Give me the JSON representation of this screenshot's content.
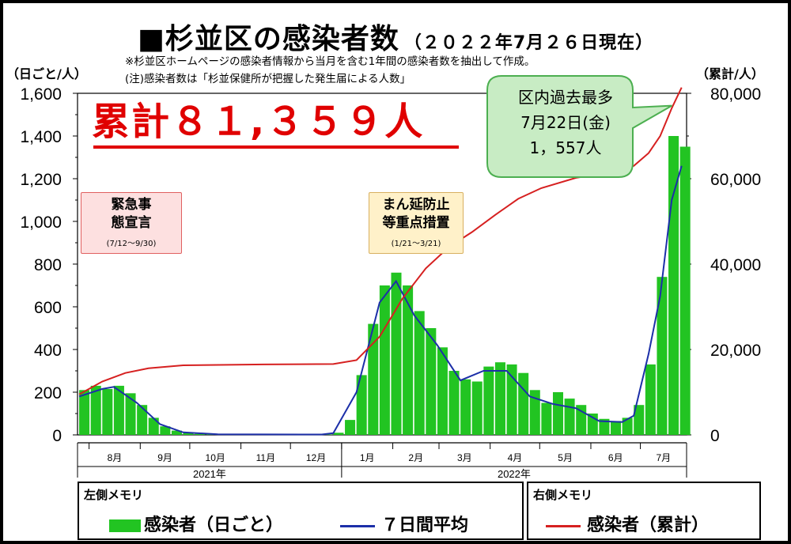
{
  "header": {
    "title": "■杉並区の感染者数",
    "date": "（２０２２年7月２６日現在）",
    "note1": "※杉並区ホームページの感染者情報から当月を含む1年間の感染者数を抽出して作成。",
    "note2": "(注)感染者数は「杉並保健所が把握した発生届による人数」"
  },
  "axis_units": {
    "left": "（日ごと/人）",
    "right": "（累計/人）"
  },
  "total_label": "累計８１,３５９人",
  "emergency_box": {
    "line1": "緊急事",
    "line2": "態宣言",
    "sub": "(7/12～9/30)"
  },
  "mambo_box": {
    "line1": "まん延防止",
    "line2": "等重点措置",
    "sub": "(1/21～3/21)"
  },
  "callout": {
    "line1": "区内過去最多",
    "line2": "7月22日(金)",
    "line3": "1，557人"
  },
  "legend": {
    "left_heading": "左側メモリ",
    "right_heading": "右側メモリ",
    "daily_label": "感染者（日ごと）",
    "avg_label": "７日間平均",
    "cumulative_label": "感染者（累計）"
  },
  "colors": {
    "bar": "#22c422",
    "avg_line": "#1c2fa8",
    "cumulative_line": "#d62020",
    "total_text": "#e00000",
    "callout_fill": "#c8ecc4",
    "callout_border": "#4caf50"
  },
  "chart_data": {
    "type": "bar",
    "months": [
      "8月",
      "9月",
      "10月",
      "11月",
      "12月",
      "1月",
      "2月",
      "3月",
      "4月",
      "5月",
      "6月",
      "7月"
    ],
    "years": [
      "2021年",
      "2022年"
    ],
    "left_axis": {
      "ylim": [
        0,
        1600
      ],
      "ticks": [
        "0",
        "200",
        "400",
        "600",
        "800",
        "1,000",
        "1,200",
        "1,400",
        "1,600"
      ]
    },
    "right_axis": {
      "ylim": [
        0,
        80000
      ],
      "ticks": [
        "0",
        "20,000",
        "40,000",
        "60,000",
        "80,000"
      ]
    },
    "daily_weekly_estimate": [
      {
        "date": "2021-07-26",
        "value": 210
      },
      {
        "date": "2021-08-02",
        "value": 230
      },
      {
        "date": "2021-08-09",
        "value": 215
      },
      {
        "date": "2021-08-16",
        "value": 230
      },
      {
        "date": "2021-08-23",
        "value": 195
      },
      {
        "date": "2021-08-30",
        "value": 140
      },
      {
        "date": "2021-09-06",
        "value": 80
      },
      {
        "date": "2021-09-13",
        "value": 40
      },
      {
        "date": "2021-09-20",
        "value": 20
      },
      {
        "date": "2021-09-27",
        "value": 10
      },
      {
        "date": "2021-10-04",
        "value": 5
      },
      {
        "date": "2021-10-11",
        "value": 3
      },
      {
        "date": "2021-10-18",
        "value": 2
      },
      {
        "date": "2021-10-25",
        "value": 2
      },
      {
        "date": "2021-11-01",
        "value": 1
      },
      {
        "date": "2021-11-08",
        "value": 1
      },
      {
        "date": "2021-11-15",
        "value": 1
      },
      {
        "date": "2021-11-22",
        "value": 1
      },
      {
        "date": "2021-11-29",
        "value": 1
      },
      {
        "date": "2021-12-06",
        "value": 1
      },
      {
        "date": "2021-12-13",
        "value": 1
      },
      {
        "date": "2021-12-20",
        "value": 2
      },
      {
        "date": "2021-12-27",
        "value": 10
      },
      {
        "date": "2022-01-03",
        "value": 70
      },
      {
        "date": "2022-01-10",
        "value": 280
      },
      {
        "date": "2022-01-17",
        "value": 520
      },
      {
        "date": "2022-01-24",
        "value": 700
      },
      {
        "date": "2022-01-31",
        "value": 760
      },
      {
        "date": "2022-02-07",
        "value": 700
      },
      {
        "date": "2022-02-14",
        "value": 580
      },
      {
        "date": "2022-02-21",
        "value": 500
      },
      {
        "date": "2022-02-28",
        "value": 410
      },
      {
        "date": "2022-03-07",
        "value": 300
      },
      {
        "date": "2022-03-14",
        "value": 260
      },
      {
        "date": "2022-03-21",
        "value": 250
      },
      {
        "date": "2022-03-28",
        "value": 320
      },
      {
        "date": "2022-04-04",
        "value": 340
      },
      {
        "date": "2022-04-11",
        "value": 330
      },
      {
        "date": "2022-04-18",
        "value": 290
      },
      {
        "date": "2022-04-25",
        "value": 210
      },
      {
        "date": "2022-05-02",
        "value": 150
      },
      {
        "date": "2022-05-09",
        "value": 200
      },
      {
        "date": "2022-05-16",
        "value": 170
      },
      {
        "date": "2022-05-23",
        "value": 140
      },
      {
        "date": "2022-05-30",
        "value": 100
      },
      {
        "date": "2022-06-06",
        "value": 75
      },
      {
        "date": "2022-06-13",
        "value": 65
      },
      {
        "date": "2022-06-20",
        "value": 80
      },
      {
        "date": "2022-06-27",
        "value": 140
      },
      {
        "date": "2022-07-04",
        "value": 330
      },
      {
        "date": "2022-07-11",
        "value": 740
      },
      {
        "date": "2022-07-18",
        "value": 1400
      },
      {
        "date": "2022-07-25",
        "value": 1350
      }
    ],
    "seven_day_average": [
      {
        "date": "2021-07-26",
        "value": 180
      },
      {
        "date": "2021-08-09",
        "value": 215
      },
      {
        "date": "2021-08-16",
        "value": 225
      },
      {
        "date": "2021-08-30",
        "value": 150
      },
      {
        "date": "2021-09-13",
        "value": 50
      },
      {
        "date": "2021-09-27",
        "value": 12
      },
      {
        "date": "2021-10-18",
        "value": 3
      },
      {
        "date": "2021-12-20",
        "value": 2
      },
      {
        "date": "2021-12-27",
        "value": 8
      },
      {
        "date": "2022-01-10",
        "value": 200
      },
      {
        "date": "2022-01-24",
        "value": 620
      },
      {
        "date": "2022-02-03",
        "value": 720
      },
      {
        "date": "2022-02-14",
        "value": 560
      },
      {
        "date": "2022-02-28",
        "value": 420
      },
      {
        "date": "2022-03-14",
        "value": 255
      },
      {
        "date": "2022-03-28",
        "value": 300
      },
      {
        "date": "2022-04-11",
        "value": 300
      },
      {
        "date": "2022-04-25",
        "value": 180
      },
      {
        "date": "2022-05-09",
        "value": 145
      },
      {
        "date": "2022-05-23",
        "value": 125
      },
      {
        "date": "2022-06-06",
        "value": 65
      },
      {
        "date": "2022-06-20",
        "value": 60
      },
      {
        "date": "2022-06-27",
        "value": 90
      },
      {
        "date": "2022-07-06",
        "value": 380
      },
      {
        "date": "2022-07-13",
        "value": 650
      },
      {
        "date": "2022-07-20",
        "value": 1100
      },
      {
        "date": "2022-07-26",
        "value": 1260
      }
    ],
    "cumulative": [
      {
        "date": "2021-07-26",
        "value": 9500
      },
      {
        "date": "2021-08-09",
        "value": 12500
      },
      {
        "date": "2021-08-23",
        "value": 14500
      },
      {
        "date": "2021-09-06",
        "value": 15600
      },
      {
        "date": "2021-09-27",
        "value": 16300
      },
      {
        "date": "2021-11-15",
        "value": 16500
      },
      {
        "date": "2021-12-27",
        "value": 16600
      },
      {
        "date": "2022-01-10",
        "value": 17500
      },
      {
        "date": "2022-01-24",
        "value": 23000
      },
      {
        "date": "2022-02-07",
        "value": 32000
      },
      {
        "date": "2022-02-21",
        "value": 39000
      },
      {
        "date": "2022-03-07",
        "value": 44000
      },
      {
        "date": "2022-03-21",
        "value": 47500
      },
      {
        "date": "2022-04-04",
        "value": 51500
      },
      {
        "date": "2022-04-18",
        "value": 55300
      },
      {
        "date": "2022-05-02",
        "value": 57800
      },
      {
        "date": "2022-05-23",
        "value": 60200
      },
      {
        "date": "2022-06-13",
        "value": 61500
      },
      {
        "date": "2022-06-27",
        "value": 63000
      },
      {
        "date": "2022-07-06",
        "value": 66000
      },
      {
        "date": "2022-07-13",
        "value": 70000
      },
      {
        "date": "2022-07-20",
        "value": 76500
      },
      {
        "date": "2022-07-26",
        "value": 81359
      }
    ],
    "peak": {
      "date": "2022-07-22",
      "value": 1557
    },
    "total": 81359
  }
}
